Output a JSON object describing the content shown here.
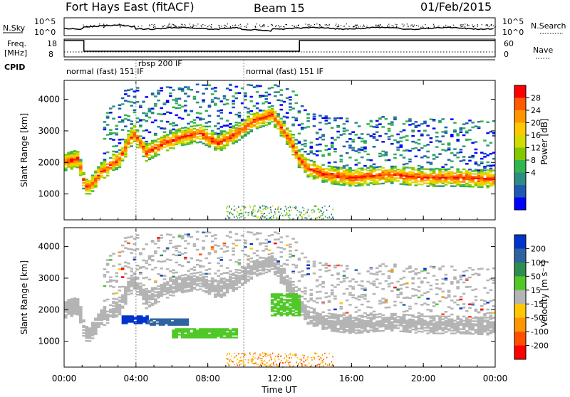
{
  "header": {
    "title": "Fort Hays East (fitACF)",
    "beam": "Beam 15",
    "date": "01/Feb/2015"
  },
  "top_panels": {
    "nsky_label": "N.Sky",
    "nsearch_label": "N.Search",
    "noise_ticks": [
      "10^5",
      "10^0"
    ],
    "freq_label_1": "Freq.",
    "freq_label_2": "[MHz]",
    "freq_ticks": [
      "18",
      "8"
    ],
    "nave_ticks": [
      "60",
      "0"
    ],
    "nave_label": "Nave",
    "cpid_label": "CPID",
    "modes": [
      {
        "label": "normal (fast) 151 IF",
        "start_h": 0.0
      },
      {
        "label": "rbsp 200 IF",
        "start_h": 4.0
      },
      {
        "label": "normal (fast) 151 IF",
        "start_h": 10.0
      }
    ]
  },
  "power_colorbar": {
    "label": "Power [dB]",
    "ticks": [
      "28",
      "24",
      "20",
      "16",
      "12",
      "8",
      "4"
    ],
    "colors": [
      "#ff0000",
      "#ff5a00",
      "#ff9600",
      "#ffc800",
      "#d2dc00",
      "#82c800",
      "#32b450",
      "#2d8c82",
      "#1e5ab4",
      "#0000ff"
    ]
  },
  "velocity_colorbar": {
    "label": "Velocity [m s⁻¹]",
    "ticks": [
      "200",
      "100",
      "50",
      "15",
      "-15",
      "-50",
      "-100",
      "-200"
    ],
    "colors": [
      "#0033cc",
      "#2d64a0",
      "#2d8c50",
      "#50c828",
      "#b4b4b4",
      "#ffc800",
      "#ff9600",
      "#ff5000",
      "#ff0000"
    ]
  },
  "chart_data": {
    "type": "heatmap",
    "xlabel": "Time UT",
    "ylabel": "Slant Range [km]",
    "x_ticks": [
      "00:00",
      "04:00",
      "08:00",
      "12:00",
      "16:00",
      "20:00",
      "00:00"
    ],
    "xlim_hours": [
      0,
      24
    ],
    "y_ticks": [
      1000,
      2000,
      3000,
      4000
    ],
    "ylim_km": [
      180,
      4600
    ],
    "panels": [
      {
        "name": "power",
        "ground_scatter_band_km": [
          [
            0,
            2000
          ],
          [
            0.7,
            2100
          ],
          [
            1.1,
            1200
          ],
          [
            1.5,
            1300
          ],
          [
            2,
            1700
          ],
          [
            3,
            2100
          ],
          [
            3.8,
            2900
          ],
          [
            4.5,
            2300
          ],
          [
            5.5,
            2600
          ],
          [
            6.5,
            2800
          ],
          [
            7.5,
            2900
          ],
          [
            8.5,
            2600
          ],
          [
            9.5,
            2900
          ],
          [
            10.5,
            3300
          ],
          [
            11.5,
            3500
          ],
          [
            12.5,
            2700
          ],
          [
            13,
            2100
          ],
          [
            13.5,
            1800
          ],
          [
            14.5,
            1600
          ],
          [
            16,
            1500
          ],
          [
            18,
            1600
          ],
          [
            20,
            1500
          ],
          [
            22,
            1500
          ],
          [
            24,
            1450
          ]
        ],
        "band_power_db": 26
      },
      {
        "name": "velocity",
        "regions": [
          {
            "t": [
              3.2,
              4.6
            ],
            "r": [
              1550,
              1800
            ],
            "velocity": 200
          },
          {
            "t": [
              4.6,
              6.8
            ],
            "r": [
              1500,
              1700
            ],
            "velocity": 100
          },
          {
            "t": [
              6.0,
              9.5
            ],
            "r": [
              1100,
              1400
            ],
            "velocity": 50
          },
          {
            "t": [
              11.5,
              13.0
            ],
            "r": [
              1800,
              2500
            ],
            "velocity": 50
          },
          {
            "t": [
              12.8,
              24.0
            ],
            "r": [
              1300,
              3000
            ],
            "velocity": 0
          },
          {
            "t": [
              0.3,
              1.5
            ],
            "r": [
              1100,
              2600
            ],
            "velocity": 0
          }
        ]
      }
    ]
  }
}
